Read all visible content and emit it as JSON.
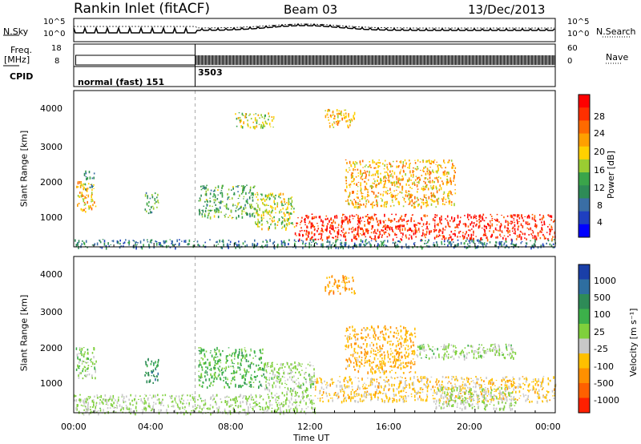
{
  "header": {
    "station": "Rankin Inlet (fitACF)",
    "beam": "Beam 03",
    "date": "13/Dec/2013"
  },
  "noise_panel": {
    "left_label": "N.Sky",
    "right_label": "N.Search",
    "left_ticks": [
      "10^5",
      "10^0"
    ],
    "right_ticks": [
      "10^5",
      "10^0"
    ]
  },
  "freq_panel": {
    "left_label_1": "Freq.",
    "left_label_2": "[MHz]",
    "right_label": "Nave",
    "left_ticks": [
      "18",
      "8"
    ],
    "right_ticks": [
      "60",
      "0"
    ]
  },
  "cpid_panel": {
    "label": "CPID",
    "modes": [
      "normal (fast) 151",
      "3503"
    ]
  },
  "power_panel": {
    "ylabel": "Slant Range [km]",
    "yticks": [
      "4000",
      "3000",
      "2000",
      "1000"
    ],
    "colorbar_label": "Power [dB]",
    "colorbar_ticks": [
      "28",
      "24",
      "20",
      "16",
      "12",
      "8",
      "4"
    ],
    "colorbar_colors": [
      "#ff0000",
      "#ff3000",
      "#ff6a00",
      "#ffa000",
      "#ffd000",
      "#9acd32",
      "#3aa54a",
      "#2e8b57",
      "#3a6ea5",
      "#1f3fc0",
      "#0000ff"
    ]
  },
  "velocity_panel": {
    "ylabel": "Slant Range [km]",
    "yticks": [
      "4000",
      "3000",
      "2000",
      "1000"
    ],
    "colorbar_label": "Velocity [m s⁻¹]",
    "colorbar_ticks": [
      "1000",
      "500",
      "100",
      "25",
      "-25",
      "-100",
      "-500",
      "-1000"
    ],
    "colorbar_colors": [
      "#1a3fa8",
      "#2e6ea0",
      "#2e8b57",
      "#3cb04a",
      "#7fd03c",
      "#c8c8c8",
      "#ffc000",
      "#ff9000",
      "#ff6000",
      "#ff2000"
    ]
  },
  "xaxis": {
    "label": "Time UT",
    "ticks": [
      "00:00",
      "04:00",
      "08:00",
      "12:00",
      "16:00",
      "20:00",
      "00:00"
    ]
  },
  "chart_data": [
    {
      "type": "heatmap",
      "title": "Power",
      "xlabel": "Time UT",
      "ylabel": "Slant Range [km]",
      "xlim": [
        "00:00",
        "24:00"
      ],
      "ylim": [
        180,
        4500
      ],
      "colorbar": {
        "label": "Power [dB]",
        "range": [
          0,
          30
        ]
      },
      "regions": [
        {
          "t0": 0.1,
          "t1": 1.1,
          "r0": 1150,
          "r1": 2000,
          "level": 20
        },
        {
          "t0": 0.5,
          "t1": 1.0,
          "r0": 1700,
          "r1": 2300,
          "level": 8
        },
        {
          "t0": 3.5,
          "t1": 4.2,
          "r0": 1100,
          "r1": 1700,
          "level": 12
        },
        {
          "t0": 6.2,
          "t1": 9.0,
          "r0": 1000,
          "r1": 1900,
          "level": 12
        },
        {
          "t0": 9.0,
          "t1": 11.0,
          "r0": 700,
          "r1": 1700,
          "level": 16
        },
        {
          "t0": 11.0,
          "t1": 24.0,
          "r0": 400,
          "r1": 1100,
          "level": 28
        },
        {
          "t0": 13.5,
          "t1": 19.0,
          "r0": 1300,
          "r1": 2600,
          "level": 20
        },
        {
          "t0": 12.5,
          "t1": 14.0,
          "r0": 3500,
          "r1": 4000,
          "level": 20
        },
        {
          "t0": 8.0,
          "t1": 10.0,
          "r0": 3500,
          "r1": 3900,
          "level": 16
        },
        {
          "t0": 0,
          "t1": 24,
          "r0": 180,
          "r1": 400,
          "level": 8
        }
      ]
    },
    {
      "type": "heatmap",
      "title": "Velocity",
      "xlabel": "Time UT",
      "ylabel": "Slant Range [km]",
      "xlim": [
        "00:00",
        "24:00"
      ],
      "ylim": [
        180,
        4500
      ],
      "colorbar": {
        "label": "Velocity [m s⁻¹]",
        "range": [
          -1000,
          1000
        ]
      },
      "regions": [
        {
          "t0": 0.1,
          "t1": 1.1,
          "r0": 1150,
          "r1": 2000,
          "level": 100
        },
        {
          "t0": 3.5,
          "t1": 4.2,
          "r0": 1000,
          "r1": 1700,
          "level": 500
        },
        {
          "t0": 6.2,
          "t1": 9.5,
          "r0": 900,
          "r1": 2000,
          "level": 300
        },
        {
          "t0": 9.5,
          "t1": 12.0,
          "r0": 700,
          "r1": 1600,
          "level": 50
        },
        {
          "t0": 12.0,
          "t1": 24.0,
          "r0": 500,
          "r1": 1200,
          "level": -300
        },
        {
          "t0": 13.5,
          "t1": 17.0,
          "r0": 1300,
          "r1": 2600,
          "level": -400
        },
        {
          "t0": 17.0,
          "t1": 22.0,
          "r0": 1700,
          "r1": 2100,
          "level": 50
        },
        {
          "t0": 18.0,
          "t1": 22.0,
          "r0": 300,
          "r1": 900,
          "level": 0
        },
        {
          "t0": 12.5,
          "t1": 14.0,
          "r0": 3500,
          "r1": 4000,
          "level": -500
        },
        {
          "t0": 0,
          "t1": 12,
          "r0": 180,
          "r1": 700,
          "level": 25
        }
      ]
    }
  ]
}
